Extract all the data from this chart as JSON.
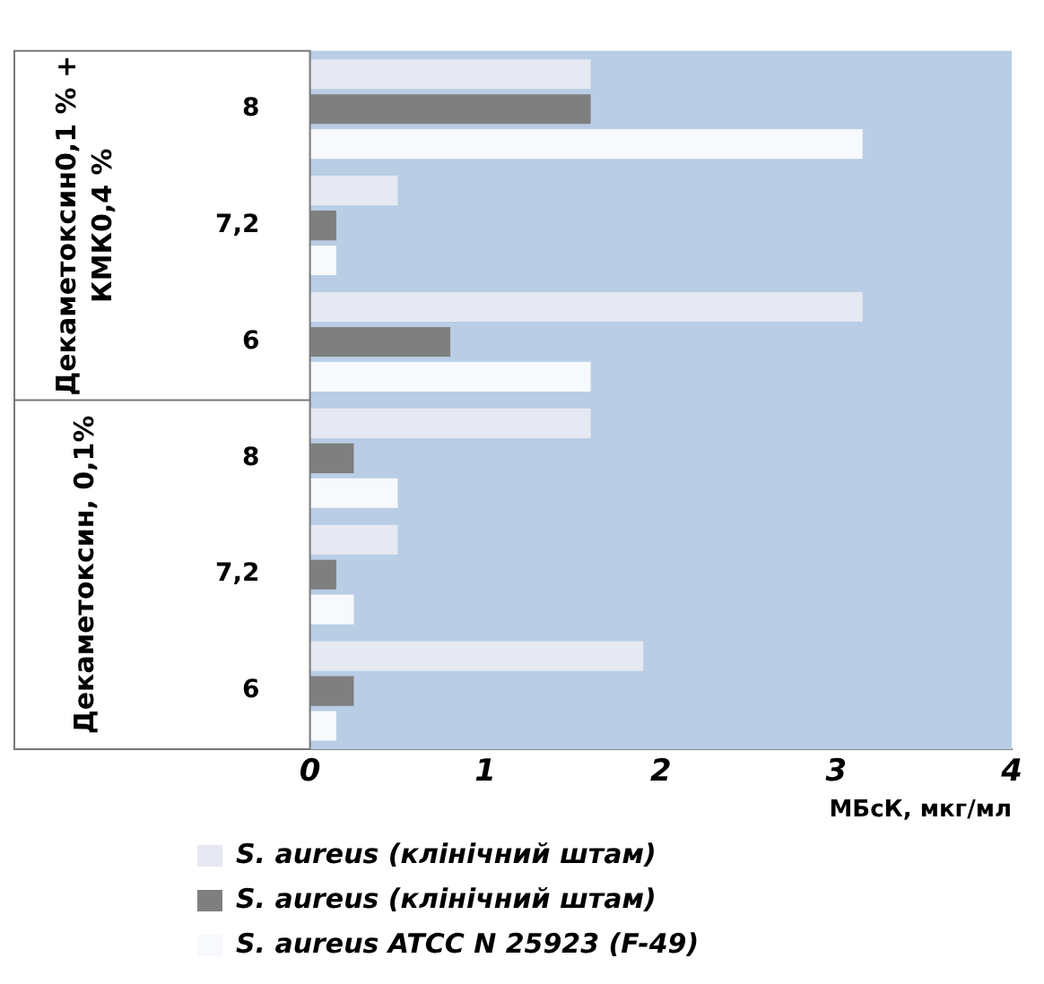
{
  "chart_data": {
    "type": "bar",
    "orientation": "horizontal",
    "xlabel": "МБсК, мкг/мл",
    "categories": [
      "8",
      "7,2",
      "6",
      "8",
      "7,2",
      "6"
    ],
    "annotations": [
      "Декаметоксин0,1 % + КМК0,4 %",
      "Декаметоксин, 0,1%"
    ],
    "series": [
      {
        "name": "S. aureus (клінічний штам)",
        "color": "#e6e9f2",
        "values": [
          1.6,
          0.5,
          3.15,
          1.6,
          0.5,
          1.9
        ]
      },
      {
        "name": "S. aureus (клінічний штам)",
        "color": "#7f7f7f",
        "values": [
          1.6,
          0.15,
          0.8,
          0.25,
          0.15,
          0.25
        ]
      },
      {
        "name": "S. aureus ATCC N 25923 (F-49)",
        "color": "#f7f9fd",
        "values": [
          3.15,
          0.15,
          1.6,
          0.5,
          0.25,
          0.15
        ]
      }
    ],
    "xlim": [
      0,
      4
    ],
    "xticks": [
      0,
      1,
      2,
      3,
      4
    ],
    "grid": false,
    "legend": "bottom"
  }
}
